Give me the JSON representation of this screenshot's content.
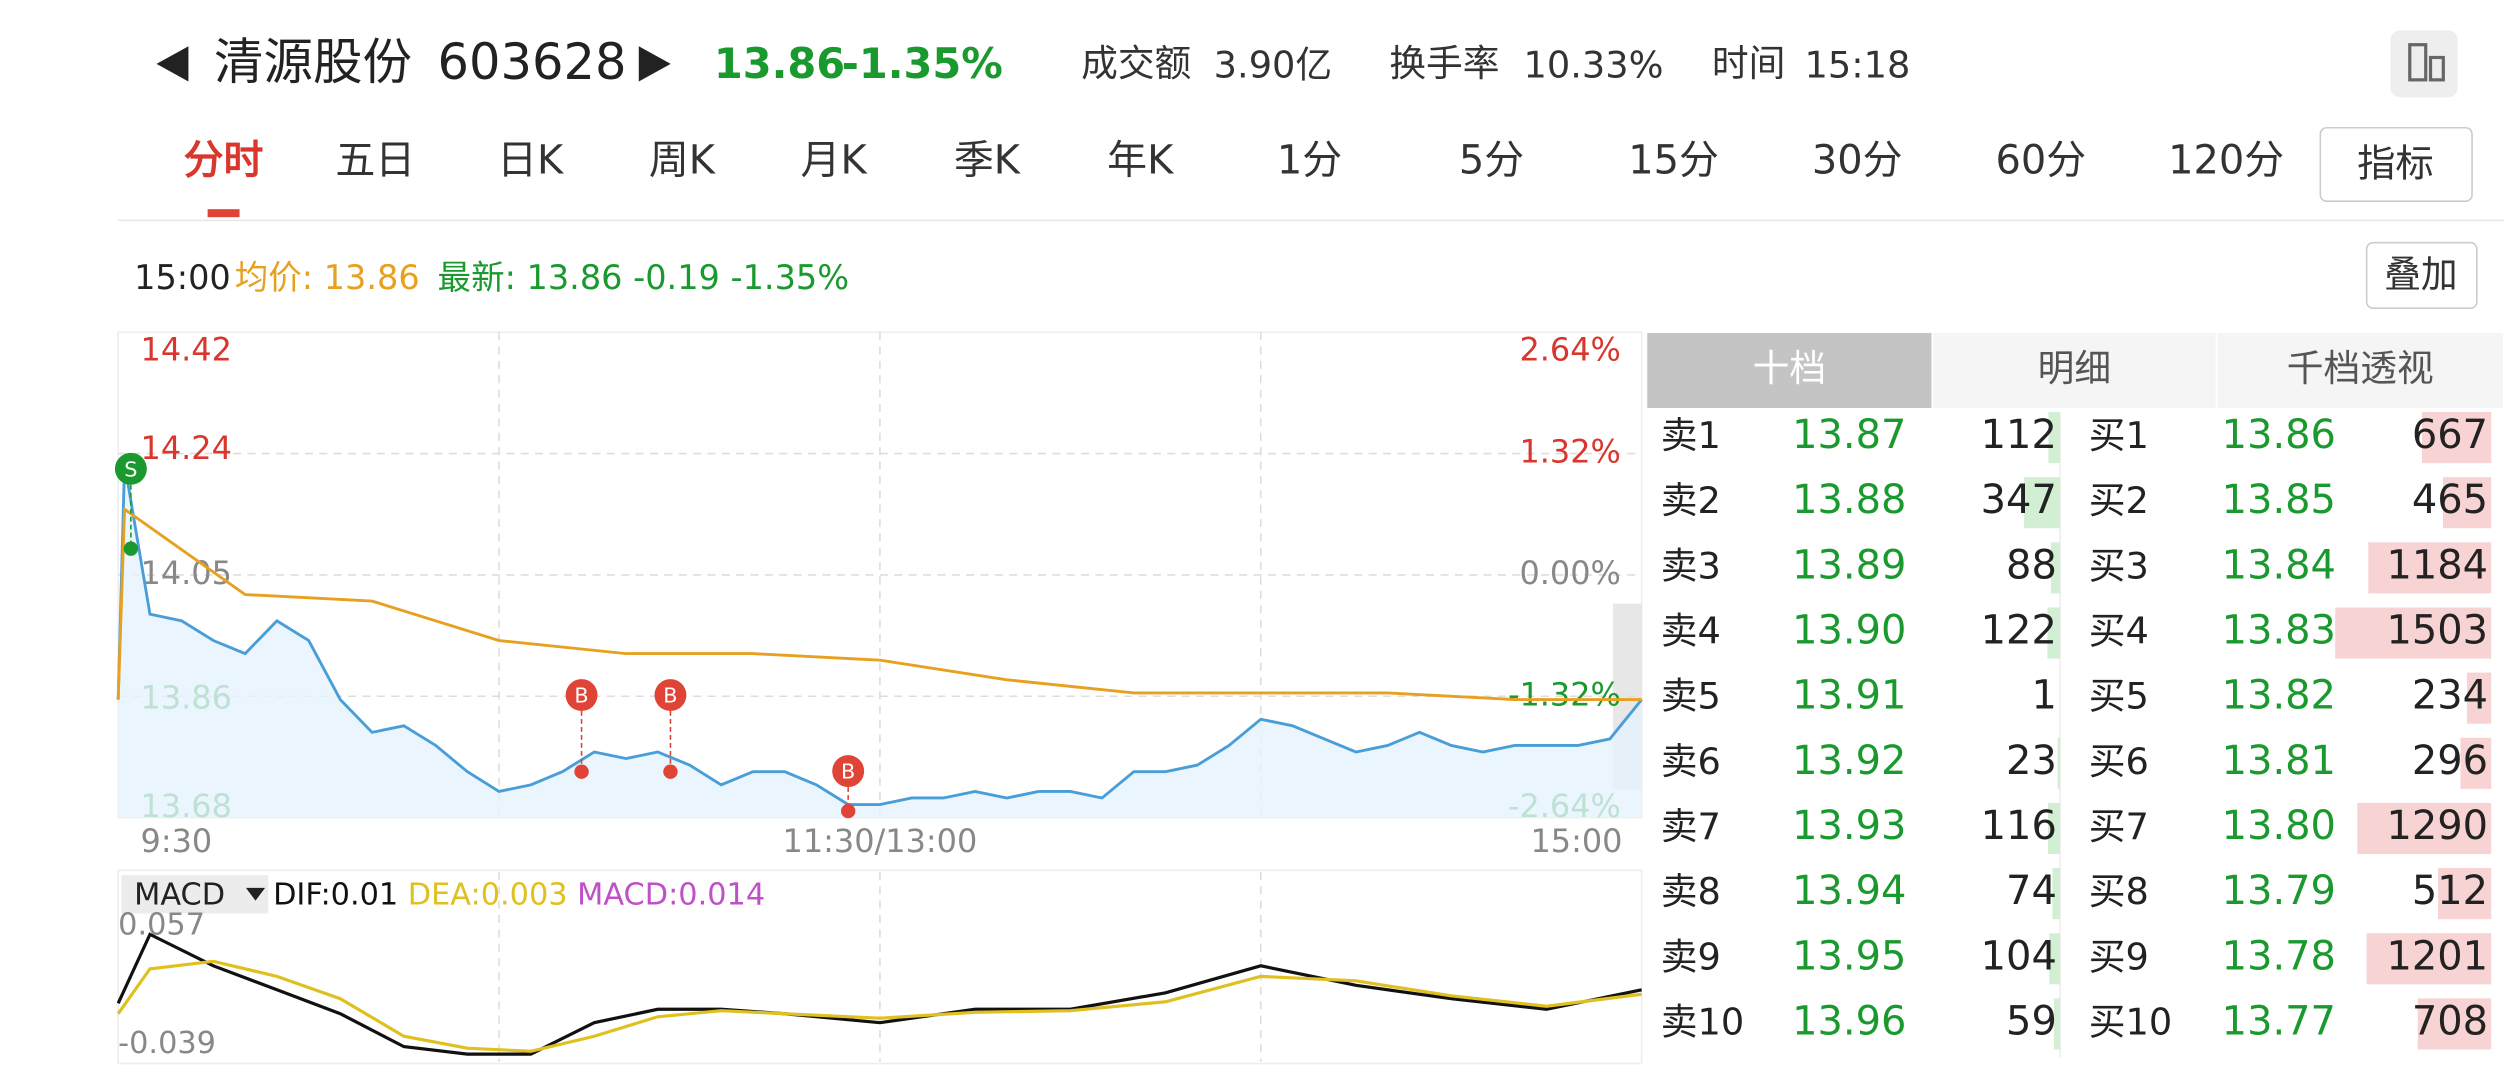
{
  "header": {
    "name": "清源股份",
    "code": "603628",
    "price": "13.86",
    "change": "-1.35%",
    "stats": [
      {
        "label": "成交额",
        "value": "3.90亿"
      },
      {
        "label": "换手率",
        "value": "10.33%"
      },
      {
        "label": "时间",
        "value": "15:18"
      }
    ]
  },
  "tabs": {
    "items": [
      "分时",
      "五日",
      "日K",
      "周K",
      "月K",
      "季K",
      "年K",
      "1分",
      "5分",
      "15分",
      "30分",
      "60分",
      "120分"
    ],
    "active": 0,
    "button": "指标"
  },
  "info": {
    "time": "15:00",
    "avg": "均价: 13.86",
    "latest": "最新: 13.86 -0.19 -1.35%",
    "button": "叠加"
  },
  "chart_data": [
    {
      "type": "line",
      "xlim": [
        0,
        240
      ],
      "xticks": [
        {
          "value": 0,
          "label": "9:30"
        },
        {
          "value": 120,
          "label": "11:30/13:00"
        },
        {
          "value": 240,
          "label": "15:00"
        }
      ],
      "ylim": [
        13.68,
        14.42
      ],
      "yticks": [
        14.42,
        14.24,
        14.05,
        13.86,
        13.68
      ],
      "y2lim": [
        -2.64,
        2.64
      ],
      "y2ticks": [
        {
          "value": 2.64,
          "label": "2.64%"
        },
        {
          "value": 1.32,
          "label": "1.32%"
        },
        {
          "value": 0,
          "label": "0.00%"
        },
        {
          "value": -1.32,
          "label": "-1.32%"
        },
        {
          "value": -2.64,
          "label": "-2.64%"
        }
      ],
      "series": [
        {
          "color": "#4a9ed8",
          "area": true,
          "x": [
            0,
            1,
            5,
            10,
            15,
            20,
            25,
            30,
            35,
            40,
            45,
            50,
            55,
            60,
            65,
            70,
            75,
            80,
            85,
            90,
            95,
            100,
            105,
            110,
            115,
            120,
            125,
            130,
            135,
            140,
            145,
            150,
            155,
            160,
            165,
            170,
            175,
            180,
            185,
            190,
            195,
            200,
            205,
            210,
            215,
            220,
            225,
            230,
            235,
            240
          ],
          "values": [
            13.86,
            14.22,
            13.99,
            13.98,
            13.95,
            13.93,
            13.98,
            13.95,
            13.86,
            13.81,
            13.82,
            13.79,
            13.75,
            13.72,
            13.73,
            13.75,
            13.78,
            13.77,
            13.78,
            13.76,
            13.73,
            13.75,
            13.75,
            13.73,
            13.7,
            13.7,
            13.71,
            13.71,
            13.72,
            13.71,
            13.72,
            13.72,
            13.71,
            13.75,
            13.75,
            13.76,
            13.79,
            13.83,
            13.82,
            13.8,
            13.78,
            13.79,
            13.81,
            13.79,
            13.78,
            13.79,
            13.79,
            13.79,
            13.8,
            13.86
          ]
        },
        {
          "color": "#e8a020",
          "area": false,
          "x": [
            0,
            1,
            20,
            40,
            60,
            80,
            100,
            120,
            140,
            160,
            180,
            200,
            220,
            240
          ],
          "values": [
            13.86,
            14.15,
            14.02,
            14.01,
            13.95,
            13.93,
            13.93,
            13.92,
            13.89,
            13.87,
            13.87,
            13.87,
            13.86,
            13.86
          ]
        }
      ],
      "markers": [
        {
          "label": "S",
          "color": "#1a9a2e",
          "x": 2,
          "value": 14.09
        },
        {
          "label": "B",
          "color": "#e04436",
          "x": 73,
          "value": 13.75
        },
        {
          "label": "B",
          "color": "#e04436",
          "x": 87,
          "value": 13.75
        },
        {
          "label": "B",
          "color": "#e04436",
          "x": 115,
          "value": 13.69
        }
      ]
    },
    {
      "type": "line",
      "indicator": "MACD",
      "note": "MACD:0.014",
      "xlim": [
        0,
        240
      ],
      "ylim": [
        -0.039,
        0.057
      ],
      "yticks": [
        0.057,
        -0.039
      ],
      "x": [
        0,
        5,
        15,
        25,
        35,
        45,
        55,
        65,
        75,
        85,
        95,
        105,
        120,
        135,
        150,
        165,
        180,
        195,
        210,
        225,
        240
      ],
      "series": [
        {
          "name": "DIF:0.01",
          "color": "#111111",
          "values": [
            -0.003,
            0.043,
            0.022,
            0.006,
            -0.01,
            -0.032,
            -0.037,
            -0.037,
            -0.016,
            -0.007,
            -0.007,
            -0.01,
            -0.016,
            -0.007,
            -0.007,
            0.004,
            0.022,
            0.009,
            0,
            -0.007,
            0.006
          ]
        },
        {
          "name": "DEA:0.003",
          "color": "#e0c020",
          "values": [
            -0.01,
            0.02,
            0.025,
            0.015,
            0,
            -0.025,
            -0.033,
            -0.035,
            -0.025,
            -0.012,
            -0.008,
            -0.01,
            -0.013,
            -0.009,
            -0.008,
            -0.002,
            0.015,
            0.012,
            0.002,
            -0.005,
            0.003
          ]
        }
      ],
      "note_color": "#c050c8"
    }
  ],
  "order_book": {
    "tabs": [
      "十档",
      "明细",
      "千档透视"
    ],
    "active": 0,
    "asks": [
      {
        "label": "卖1",
        "price": "13.87",
        "volume": 112
      },
      {
        "label": "卖2",
        "price": "13.88",
        "volume": 347
      },
      {
        "label": "卖3",
        "price": "13.89",
        "volume": 88
      },
      {
        "label": "卖4",
        "price": "13.90",
        "volume": 122
      },
      {
        "label": "卖5",
        "price": "13.91",
        "volume": 1
      },
      {
        "label": "卖6",
        "price": "13.92",
        "volume": 23
      },
      {
        "label": "卖7",
        "price": "13.93",
        "volume": 116
      },
      {
        "label": "卖8",
        "price": "13.94",
        "volume": 74
      },
      {
        "label": "卖9",
        "price": "13.95",
        "volume": 104
      },
      {
        "label": "卖10",
        "price": "13.96",
        "volume": 59
      }
    ],
    "bids": [
      {
        "label": "买1",
        "price": "13.86",
        "volume": 667
      },
      {
        "label": "买2",
        "price": "13.85",
        "volume": 465
      },
      {
        "label": "买3",
        "price": "13.84",
        "volume": 1184
      },
      {
        "label": "买4",
        "price": "13.83",
        "volume": 1503
      },
      {
        "label": "买5",
        "price": "13.82",
        "volume": 234
      },
      {
        "label": "买6",
        "price": "13.81",
        "volume": 296
      },
      {
        "label": "买7",
        "price": "13.80",
        "volume": 1290
      },
      {
        "label": "买8",
        "price": "13.79",
        "volume": 512
      },
      {
        "label": "买9",
        "price": "13.78",
        "volume": 1201
      },
      {
        "label": "买10",
        "price": "13.77",
        "volume": 708
      }
    ]
  }
}
